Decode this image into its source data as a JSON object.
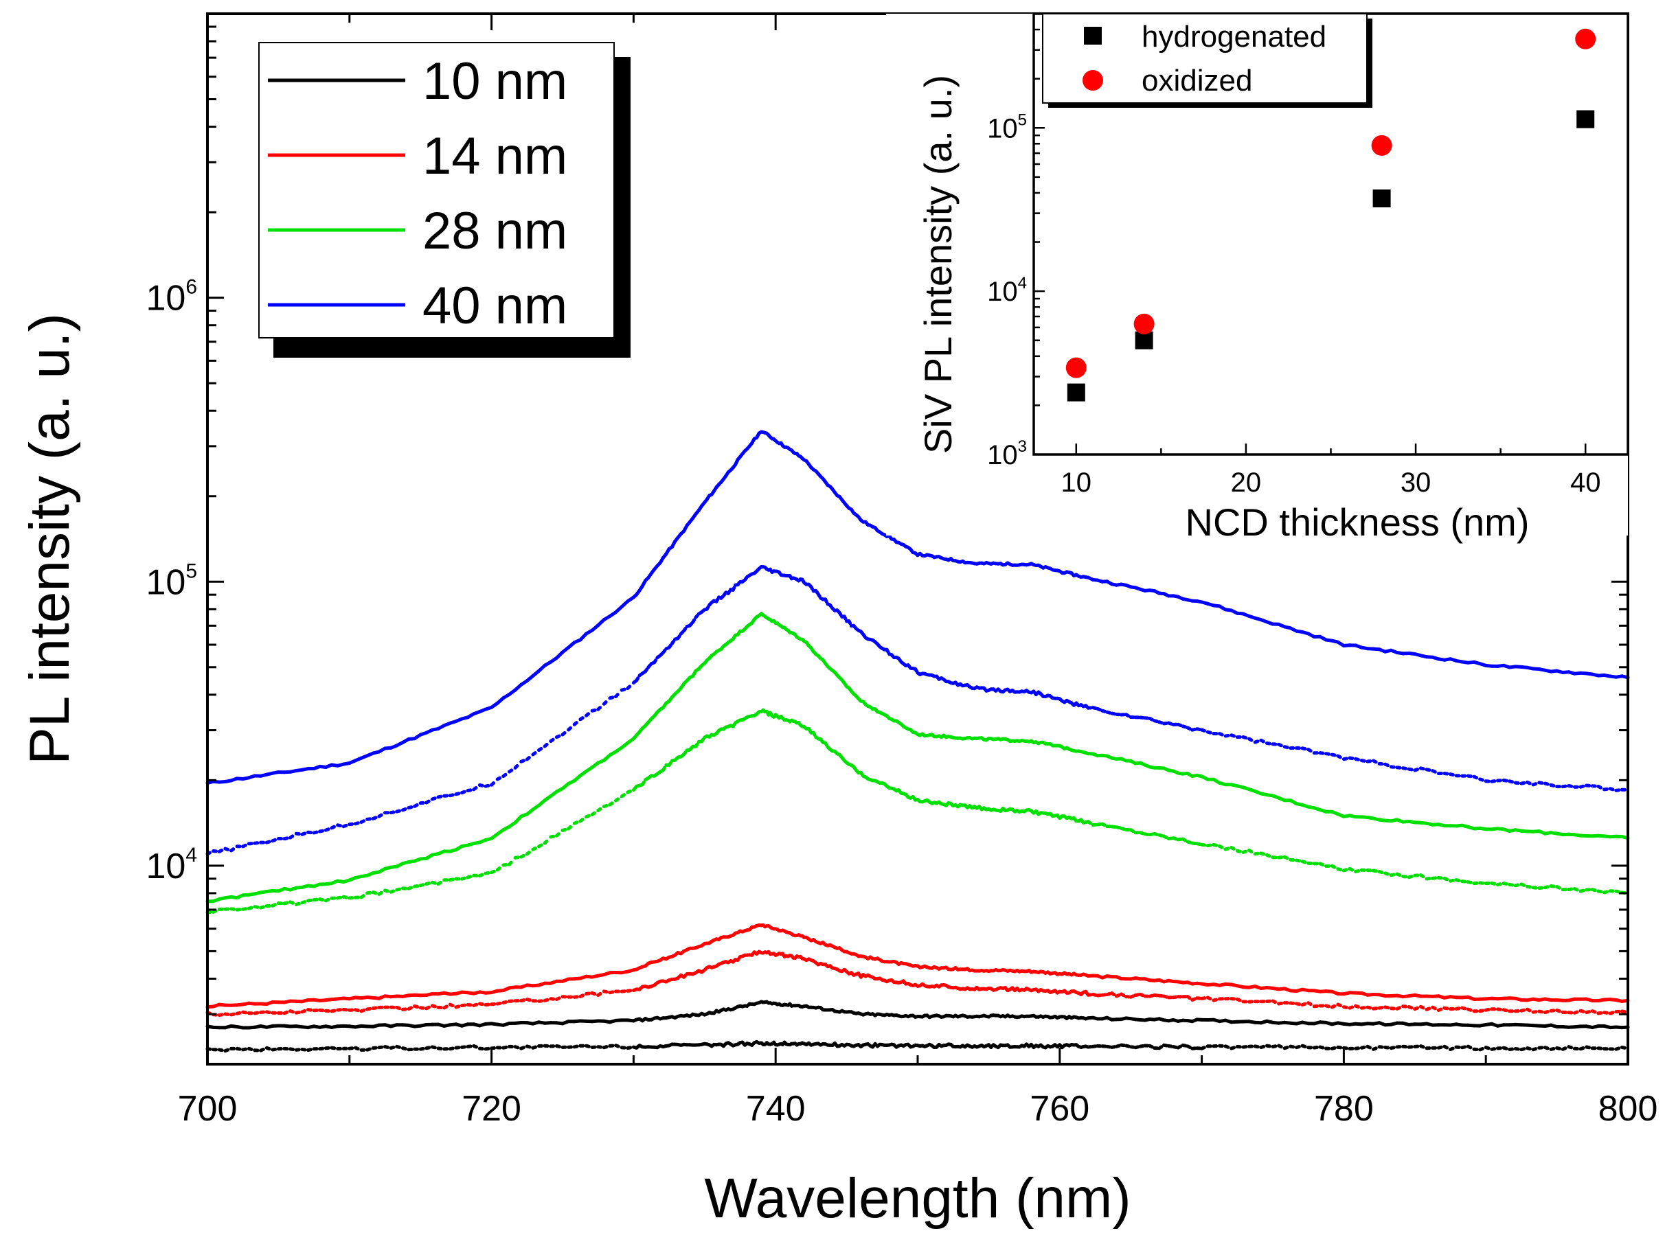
{
  "chart_data": [
    {
      "type": "line",
      "title": "",
      "xlabel": "Wavelength (nm)",
      "ylabel": "PL intensity (a. u.)",
      "xlim": [
        700,
        800
      ],
      "ylim": [
        2000,
        10000000
      ],
      "yscale": "log",
      "x_ticks": [
        {
          "value": 700,
          "label": "700"
        },
        {
          "value": 720,
          "label": "720"
        },
        {
          "value": 740,
          "label": "740"
        },
        {
          "value": 760,
          "label": "760"
        },
        {
          "value": 780,
          "label": "780"
        },
        {
          "value": 800,
          "label": "800"
        }
      ],
      "y_ticks": [
        {
          "value": 10000,
          "base": "10",
          "exp": "4"
        },
        {
          "value": 100000,
          "base": "10",
          "exp": "5"
        },
        {
          "value": 1000000,
          "base": "10",
          "exp": "6"
        }
      ],
      "legend": {
        "position": "top-left",
        "entries": [
          {
            "label": "10 nm",
            "color": "#000000"
          },
          {
            "label": "14 nm",
            "color": "#ff0000"
          },
          {
            "label": "28 nm",
            "color": "#00e000"
          },
          {
            "label": "40 nm",
            "color": "#0000ff"
          }
        ]
      },
      "x": [
        700,
        710,
        720,
        730,
        735,
        739,
        742,
        746,
        750,
        754,
        758,
        762,
        770,
        780,
        790,
        800
      ],
      "series": [
        {
          "name": "40 nm",
          "style": "solid",
          "color": "#0000ff",
          "values": [
            19500,
            23000,
            36000,
            88000,
            190000,
            340000,
            270000,
            165000,
            125000,
            116000,
            115000,
            103000,
            85000,
            60000,
            51000,
            46000
          ]
        },
        {
          "name": "40 nm",
          "style": "dotted",
          "color": "#0000ff",
          "values": [
            11000,
            14000,
            19500,
            44000,
            80000,
            112000,
            100000,
            66000,
            48000,
            42000,
            41000,
            36000,
            30000,
            24000,
            20000,
            18500
          ]
        },
        {
          "name": "28 nm",
          "style": "solid",
          "color": "#00e000",
          "values": [
            7500,
            8900,
            12500,
            28000,
            52000,
            77000,
            62000,
            38000,
            29000,
            28000,
            27500,
            25000,
            20500,
            15000,
            13500,
            12500
          ]
        },
        {
          "name": "28 nm",
          "style": "dotted",
          "color": "#00e000",
          "values": [
            6900,
            7700,
            9400,
            18500,
            28000,
            35000,
            31000,
            21000,
            17000,
            16000,
            15500,
            14200,
            12000,
            9700,
            8700,
            8000
          ]
        },
        {
          "name": "14 nm",
          "style": "solid",
          "color": "#ff0000",
          "values": [
            3200,
            3400,
            3600,
            4300,
            5300,
            6200,
            5600,
            4800,
            4400,
            4300,
            4250,
            4100,
            3850,
            3550,
            3400,
            3350
          ]
        },
        {
          "name": "14 nm",
          "style": "dotted",
          "color": "#ff0000",
          "values": [
            3000,
            3100,
            3250,
            3650,
            4300,
            5000,
            4700,
            4100,
            3800,
            3700,
            3650,
            3550,
            3400,
            3200,
            3100,
            3050
          ]
        },
        {
          "name": "10 nm",
          "style": "solid",
          "color": "#000000",
          "values": [
            2700,
            2720,
            2760,
            2850,
            3000,
            3300,
            3200,
            3000,
            2950,
            2950,
            2950,
            2900,
            2850,
            2780,
            2750,
            2700
          ]
        },
        {
          "name": "10 nm",
          "style": "dotted",
          "color": "#000000",
          "values": [
            2250,
            2270,
            2290,
            2310,
            2330,
            2370,
            2360,
            2330,
            2320,
            2320,
            2320,
            2310,
            2300,
            2290,
            2280,
            2270
          ]
        }
      ]
    },
    {
      "type": "scatter",
      "title": "",
      "xlabel": "NCD thickness (nm)",
      "ylabel": "SiV PL intensity (a. u.)",
      "xlim": [
        7.5,
        42.5
      ],
      "ylim": [
        1000,
        500000
      ],
      "yscale": "log",
      "x_ticks": [
        {
          "value": 10,
          "label": "10"
        },
        {
          "value": 20,
          "label": "20"
        },
        {
          "value": 30,
          "label": "30"
        },
        {
          "value": 40,
          "label": "40"
        }
      ],
      "y_ticks": [
        {
          "value": 1000,
          "base": "10",
          "exp": "3"
        },
        {
          "value": 10000,
          "base": "10",
          "exp": "4"
        },
        {
          "value": 100000,
          "base": "10",
          "exp": "5"
        }
      ],
      "legend": {
        "position": "top-left",
        "entries": [
          {
            "label": "hydrogenated",
            "color": "#000000",
            "marker": "square"
          },
          {
            "label": "oxidized",
            "color": "#ff0000",
            "marker": "circle"
          }
        ]
      },
      "series": [
        {
          "name": "hydrogenated",
          "marker": "square",
          "color": "#000000",
          "x": [
            10,
            14,
            28,
            40
          ],
          "values": [
            2400,
            5000,
            37000,
            113000
          ]
        },
        {
          "name": "oxidized",
          "marker": "circle",
          "color": "#ff0000",
          "x": [
            10,
            14,
            28,
            40
          ],
          "values": [
            3400,
            6300,
            78000,
            350000
          ]
        }
      ]
    }
  ]
}
